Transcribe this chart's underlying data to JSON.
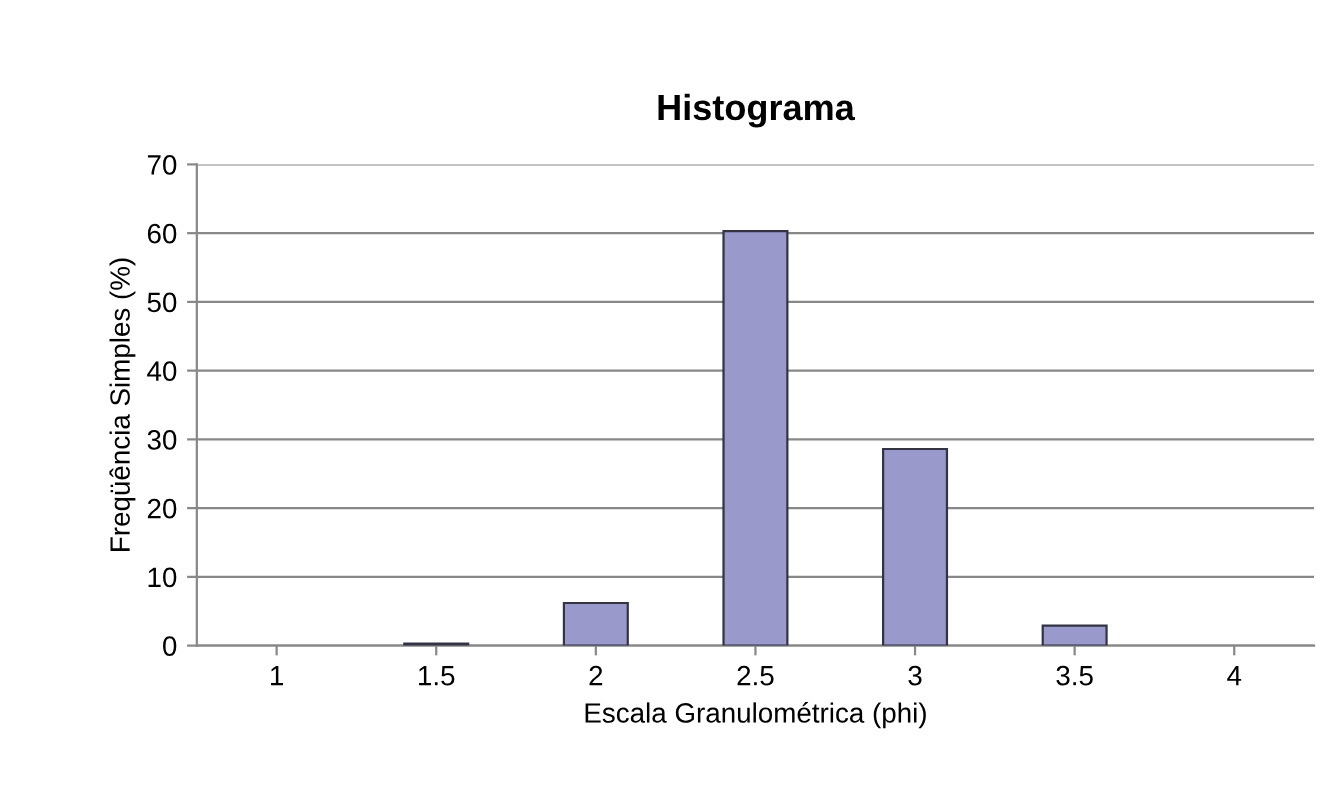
{
  "chart_data": {
    "type": "bar",
    "title": "Histograma",
    "xlabel": "Escala Granulométrica (phi)",
    "ylabel": "Freqüência Simples (%)",
    "categories": [
      "1",
      "1.5",
      "2",
      "2.5",
      "3",
      "3.5",
      "4"
    ],
    "values": [
      0,
      0.3,
      6.2,
      60.3,
      28.6,
      2.9,
      0
    ],
    "color": "#9999cc",
    "ylim": [
      0,
      70
    ],
    "yticks": [
      0,
      10,
      20,
      30,
      40,
      50,
      60,
      70
    ],
    "grid": "y"
  }
}
